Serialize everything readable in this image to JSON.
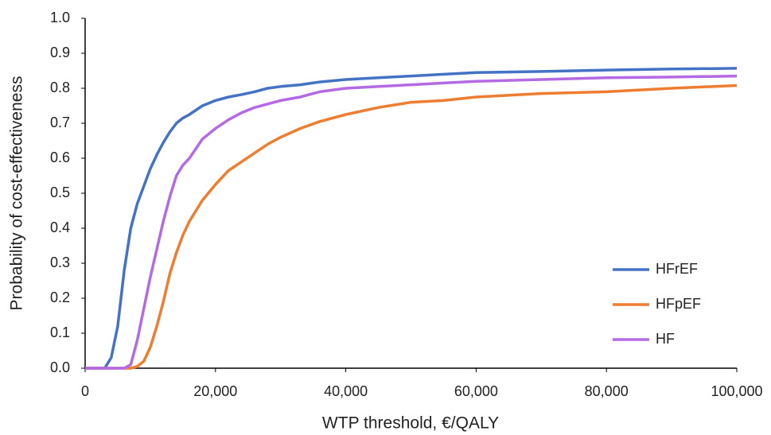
{
  "chart_data": {
    "type": "line",
    "xlabel": "WTP threshold, €/QALY",
    "ylabel": "Probability of cost-effectiveness",
    "x": [
      0,
      2000,
      3000,
      4000,
      5000,
      6000,
      7000,
      8000,
      9000,
      10000,
      11000,
      12000,
      13000,
      14000,
      15000,
      16000,
      18000,
      20000,
      22000,
      24000,
      26000,
      28000,
      30000,
      33000,
      36000,
      40000,
      45000,
      50000,
      55000,
      60000,
      70000,
      80000,
      90000,
      100000
    ],
    "series": [
      {
        "name": "HFrEF",
        "color": "#4472C4",
        "values": [
          0,
          0,
          0,
          0.03,
          0.12,
          0.28,
          0.4,
          0.47,
          0.52,
          0.57,
          0.61,
          0.645,
          0.675,
          0.7,
          0.715,
          0.725,
          0.75,
          0.765,
          0.775,
          0.782,
          0.79,
          0.8,
          0.805,
          0.81,
          0.818,
          0.825,
          0.83,
          0.835,
          0.84,
          0.845,
          0.848,
          0.852,
          0.855,
          0.857
        ]
      },
      {
        "name": "HFpEF",
        "color": "#ED7D31",
        "values": [
          0,
          0,
          0,
          0,
          0,
          0,
          0,
          0.005,
          0.02,
          0.06,
          0.12,
          0.19,
          0.27,
          0.33,
          0.38,
          0.42,
          0.48,
          0.525,
          0.565,
          0.59,
          0.615,
          0.64,
          0.66,
          0.685,
          0.705,
          0.725,
          0.745,
          0.76,
          0.765,
          0.775,
          0.785,
          0.79,
          0.8,
          0.808
        ]
      },
      {
        "name": "HF",
        "color": "#B36AE2",
        "values": [
          0,
          0,
          0,
          0,
          0,
          0,
          0.01,
          0.08,
          0.17,
          0.26,
          0.34,
          0.42,
          0.49,
          0.55,
          0.58,
          0.6,
          0.655,
          0.685,
          0.71,
          0.73,
          0.745,
          0.755,
          0.765,
          0.775,
          0.79,
          0.8,
          0.805,
          0.81,
          0.815,
          0.82,
          0.825,
          0.83,
          0.832,
          0.835
        ]
      }
    ],
    "xlim": [
      0,
      100000
    ],
    "xticks": [
      0,
      {
        "value": 20000,
        "label": "20,000"
      },
      {
        "value": 40000,
        "label": "40,000"
      },
      {
        "value": 60000,
        "label": "60,000"
      },
      {
        "value": 80000,
        "label": "80,000"
      },
      {
        "value": 100000,
        "label": "100,000"
      }
    ],
    "ylim": [
      0,
      1
    ],
    "yticks": [
      {
        "value": 0,
        "label": "0.0"
      },
      0.1,
      0.2,
      0.3,
      0.4,
      0.5,
      0.6,
      0.7,
      0.8,
      0.9,
      {
        "value": 1,
        "label": "1.0"
      }
    ],
    "grid": false,
    "legend": "lower right"
  }
}
